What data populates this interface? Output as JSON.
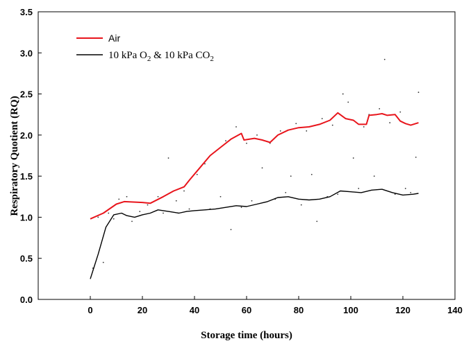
{
  "chart_data": {
    "type": "line",
    "xlabel": "Storage time (hours)",
    "ylabel": "Respiratory Quotient (RQ)",
    "xlim": [
      -20,
      140
    ],
    "ylim": [
      0,
      3.5
    ],
    "xticks": [
      "0",
      "20",
      "40",
      "60",
      "80",
      "100",
      "120",
      "140"
    ],
    "yticks": [
      "0.0",
      "0.5",
      "1.0",
      "1.5",
      "2.0",
      "2.5",
      "3.0",
      "3.5"
    ],
    "grid": false,
    "legend_position": "top-left",
    "series": [
      {
        "name": "Air",
        "color": "#e8141b",
        "x": [
          0,
          5,
          10,
          13,
          20,
          23,
          28,
          32,
          36,
          38,
          42,
          46,
          50,
          54,
          58,
          59,
          63,
          66,
          69,
          72,
          76,
          80,
          84,
          88,
          92,
          95,
          98,
          101,
          103,
          106,
          107,
          110,
          112,
          114,
          117,
          119,
          121,
          123,
          126
        ],
        "y": [
          0.98,
          1.05,
          1.16,
          1.19,
          1.18,
          1.17,
          1.25,
          1.32,
          1.37,
          1.45,
          1.6,
          1.75,
          1.85,
          1.95,
          2.02,
          1.94,
          1.96,
          1.94,
          1.91,
          2.0,
          2.06,
          2.09,
          2.1,
          2.13,
          2.18,
          2.27,
          2.2,
          2.18,
          2.13,
          2.13,
          2.24,
          2.25,
          2.26,
          2.24,
          2.25,
          2.17,
          2.14,
          2.12,
          2.15
        ]
      },
      {
        "name": "10 kPa O2 & 10 kPa CO2",
        "color": "#000000",
        "x": [
          0,
          3,
          6,
          9,
          12,
          14,
          17,
          20,
          23,
          26,
          30,
          34,
          37,
          40,
          44,
          48,
          52,
          56,
          60,
          64,
          68,
          72,
          76,
          80,
          84,
          88,
          92,
          96,
          100,
          104,
          108,
          112,
          116,
          120,
          124,
          126
        ],
        "y": [
          0.25,
          0.55,
          0.88,
          1.03,
          1.05,
          1.02,
          1.0,
          1.03,
          1.05,
          1.09,
          1.07,
          1.05,
          1.07,
          1.08,
          1.09,
          1.1,
          1.12,
          1.14,
          1.13,
          1.16,
          1.19,
          1.24,
          1.25,
          1.22,
          1.21,
          1.22,
          1.25,
          1.32,
          1.31,
          1.3,
          1.33,
          1.34,
          1.3,
          1.27,
          1.28,
          1.29
        ]
      }
    ],
    "scatter_points": [
      {
        "x": 1,
        "y": 0.38
      },
      {
        "x": 3,
        "y": 1.0
      },
      {
        "x": 5,
        "y": 0.45
      },
      {
        "x": 7,
        "y": 1.05
      },
      {
        "x": 9,
        "y": 0.98
      },
      {
        "x": 11,
        "y": 1.22
      },
      {
        "x": 14,
        "y": 1.25
      },
      {
        "x": 16,
        "y": 0.95
      },
      {
        "x": 19,
        "y": 1.07
      },
      {
        "x": 22,
        "y": 1.15
      },
      {
        "x": 26,
        "y": 1.25
      },
      {
        "x": 28,
        "y": 1.05
      },
      {
        "x": 30,
        "y": 1.72
      },
      {
        "x": 33,
        "y": 1.2
      },
      {
        "x": 36,
        "y": 1.32
      },
      {
        "x": 38,
        "y": 1.1
      },
      {
        "x": 41,
        "y": 1.52
      },
      {
        "x": 44,
        "y": 1.65
      },
      {
        "x": 46,
        "y": 1.1
      },
      {
        "x": 48,
        "y": 1.8
      },
      {
        "x": 50,
        "y": 1.25
      },
      {
        "x": 52,
        "y": 1.93
      },
      {
        "x": 54,
        "y": 0.85
      },
      {
        "x": 56,
        "y": 2.1
      },
      {
        "x": 58,
        "y": 1.12
      },
      {
        "x": 60,
        "y": 1.9
      },
      {
        "x": 62,
        "y": 1.2
      },
      {
        "x": 64,
        "y": 2.0
      },
      {
        "x": 66,
        "y": 1.6
      },
      {
        "x": 69,
        "y": 1.9
      },
      {
        "x": 71,
        "y": 1.22
      },
      {
        "x": 73,
        "y": 2.05
      },
      {
        "x": 75,
        "y": 1.3
      },
      {
        "x": 77,
        "y": 1.5
      },
      {
        "x": 79,
        "y": 2.14
      },
      {
        "x": 81,
        "y": 1.15
      },
      {
        "x": 83,
        "y": 2.05
      },
      {
        "x": 85,
        "y": 1.52
      },
      {
        "x": 87,
        "y": 0.95
      },
      {
        "x": 89,
        "y": 2.2
      },
      {
        "x": 91,
        "y": 1.25
      },
      {
        "x": 93,
        "y": 2.12
      },
      {
        "x": 95,
        "y": 1.28
      },
      {
        "x": 97,
        "y": 2.5
      },
      {
        "x": 99,
        "y": 2.4
      },
      {
        "x": 101,
        "y": 1.72
      },
      {
        "x": 103,
        "y": 1.35
      },
      {
        "x": 105,
        "y": 2.1
      },
      {
        "x": 107,
        "y": 2.25
      },
      {
        "x": 109,
        "y": 1.5
      },
      {
        "x": 111,
        "y": 2.32
      },
      {
        "x": 113,
        "y": 2.92
      },
      {
        "x": 115,
        "y": 2.15
      },
      {
        "x": 117,
        "y": 1.28
      },
      {
        "x": 119,
        "y": 2.28
      },
      {
        "x": 121,
        "y": 1.35
      },
      {
        "x": 123,
        "y": 1.3
      },
      {
        "x": 125,
        "y": 1.73
      },
      {
        "x": 126,
        "y": 2.52
      }
    ]
  }
}
